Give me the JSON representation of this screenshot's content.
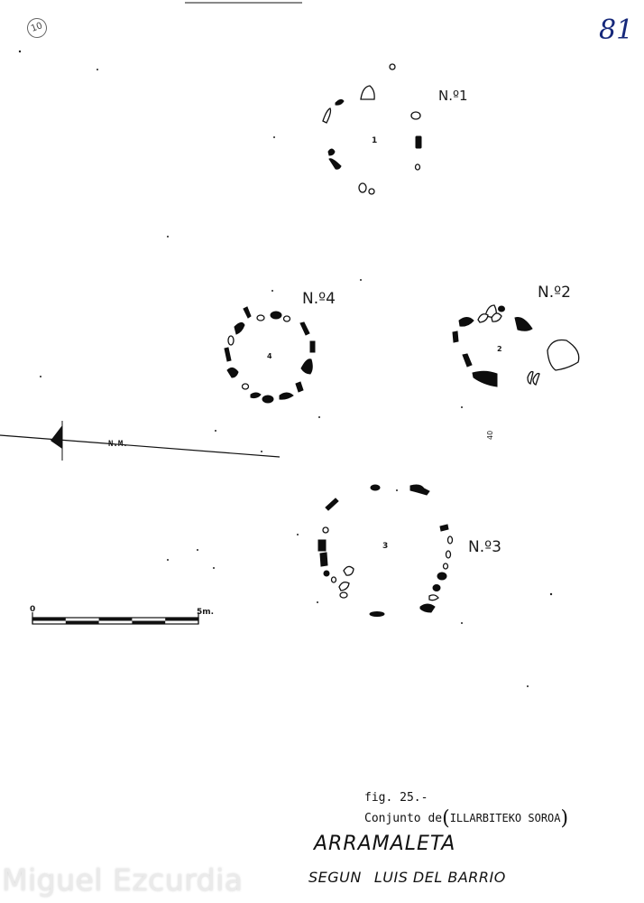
{
  "page_number": "81",
  "circled_mark": "10",
  "circles": [
    {
      "label": "N.º1",
      "number": "1"
    },
    {
      "label": "N.º2",
      "number": "2"
    },
    {
      "label": "N.º3",
      "number": "3"
    },
    {
      "label": "N.º4",
      "number": "4"
    }
  ],
  "north_label": "N.M.",
  "scale": {
    "start": "0",
    "end": "5m."
  },
  "side_mark": "40",
  "caption": {
    "fig": "fig. 25.-",
    "prefix": "Conjunto de",
    "site": "ILLARBITEKO SOROA"
  },
  "site_title": "ARRAMALETA",
  "author": {
    "word1": "SEGUN",
    "word2": "LUIS DEL BARRIO"
  },
  "watermark": "Miguel Ezcurdia"
}
